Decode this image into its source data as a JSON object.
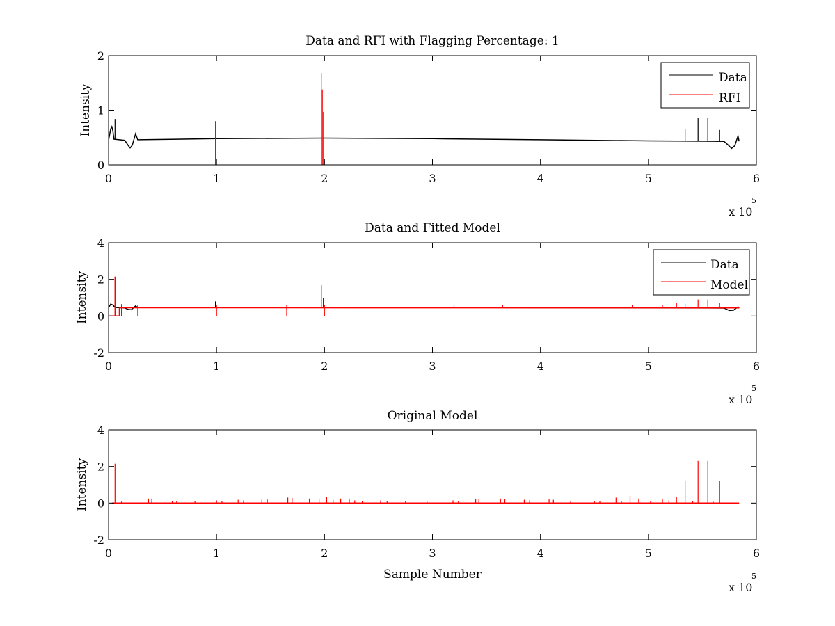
{
  "chart_data": [
    {
      "type": "line",
      "title": "Data and RFI with Flagging Percentage: 1",
      "xlabel": "",
      "ylabel": "Intensity",
      "xlim": [
        0,
        6
      ],
      "ylim": [
        0,
        2
      ],
      "xticks": [
        0,
        1,
        2,
        3,
        4,
        5,
        6
      ],
      "yticks": [
        0,
        1,
        2
      ],
      "x_multiplier": "x 10",
      "x_multiplier_exponent": "5",
      "legend": {
        "position": "top-right",
        "entries": [
          "Data",
          "RFI"
        ]
      },
      "grid": false,
      "series": [
        {
          "name": "Data",
          "color": "#000000",
          "baseline": [
            [
              0.0,
              0.45
            ],
            [
              0.02,
              0.66
            ],
            [
              0.03,
              0.7
            ],
            [
              0.04,
              0.62
            ],
            [
              0.05,
              0.47
            ],
            [
              0.1,
              0.46
            ],
            [
              0.15,
              0.45
            ],
            [
              0.18,
              0.36
            ],
            [
              0.2,
              0.31
            ],
            [
              0.22,
              0.36
            ],
            [
              0.25,
              0.57
            ],
            [
              0.27,
              0.46
            ],
            [
              1.0,
              0.48
            ],
            [
              2.0,
              0.49
            ],
            [
              3.0,
              0.48
            ],
            [
              4.0,
              0.46
            ],
            [
              5.0,
              0.44
            ],
            [
              5.7,
              0.43
            ],
            [
              5.74,
              0.36
            ],
            [
              5.77,
              0.3
            ],
            [
              5.8,
              0.35
            ],
            [
              5.83,
              0.53
            ],
            [
              5.84,
              0.43
            ]
          ],
          "spikes": [
            [
              0.06,
              0.84
            ],
            [
              5.34,
              0.66
            ],
            [
              5.46,
              0.86
            ],
            [
              5.55,
              0.86
            ],
            [
              5.66,
              0.64
            ]
          ]
        },
        {
          "name": "RFI",
          "color": "#ff0000",
          "spikes": [
            [
              0.99,
              0.8
            ],
            [
              1.97,
              1.68
            ],
            [
              1.98,
              1.38
            ],
            [
              1.99,
              0.97
            ]
          ]
        }
      ]
    },
    {
      "type": "line",
      "title": "Data and Fitted Model",
      "xlabel": "",
      "ylabel": "Intensity",
      "xlim": [
        0,
        6
      ],
      "ylim": [
        -2,
        4
      ],
      "xticks": [
        0,
        1,
        2,
        3,
        4,
        5,
        6
      ],
      "yticks": [
        -2,
        0,
        2,
        4
      ],
      "x_multiplier": "x 10",
      "x_multiplier_exponent": "5",
      "legend": {
        "position": "top-right",
        "entries": [
          "Data",
          "Model"
        ]
      },
      "grid": false,
      "series": [
        {
          "name": "Data",
          "color": "#000000",
          "baseline": [
            [
              0.0,
              0.45
            ],
            [
              0.02,
              0.65
            ],
            [
              0.04,
              0.6
            ],
            [
              0.06,
              0.47
            ],
            [
              0.15,
              0.44
            ],
            [
              0.18,
              0.36
            ],
            [
              0.21,
              0.34
            ],
            [
              0.25,
              0.55
            ],
            [
              0.27,
              0.46
            ],
            [
              1.0,
              0.47
            ],
            [
              2.0,
              0.48
            ],
            [
              3.0,
              0.47
            ],
            [
              4.0,
              0.45
            ],
            [
              5.0,
              0.44
            ],
            [
              5.7,
              0.43
            ],
            [
              5.75,
              0.3
            ],
            [
              5.79,
              0.32
            ],
            [
              5.83,
              0.5
            ],
            [
              5.84,
              0.42
            ]
          ],
          "spikes": [
            [
              0.99,
              0.8
            ],
            [
              1.97,
              1.68
            ],
            [
              1.99,
              0.97
            ]
          ]
        },
        {
          "name": "Model",
          "color": "#ff0000",
          "baseline": [
            [
              0.0,
              0.0
            ],
            [
              0.06,
              0.0
            ],
            [
              0.06,
              2.15
            ],
            [
              0.065,
              0.0
            ],
            [
              0.1,
              0.0
            ],
            [
              0.1,
              0.45
            ],
            [
              5.84,
              0.44
            ]
          ],
          "spikes": [
            [
              0.12,
              0.65
            ],
            [
              0.27,
              0.6
            ],
            [
              1.0,
              0.58
            ],
            [
              1.65,
              0.6
            ],
            [
              2.0,
              0.62
            ],
            [
              3.2,
              0.58
            ],
            [
              3.65,
              0.58
            ],
            [
              4.85,
              0.58
            ],
            [
              5.13,
              0.6
            ],
            [
              5.26,
              0.7
            ],
            [
              5.34,
              0.65
            ],
            [
              5.46,
              0.9
            ],
            [
              5.55,
              0.9
            ],
            [
              5.66,
              0.7
            ]
          ]
        }
      ]
    },
    {
      "type": "line",
      "title": "Original Model",
      "xlabel": "Sample Number",
      "ylabel": "Intensity",
      "xlim": [
        0,
        6
      ],
      "ylim": [
        -2,
        4
      ],
      "xticks": [
        0,
        1,
        2,
        3,
        4,
        5,
        6
      ],
      "yticks": [
        -2,
        0,
        2,
        4
      ],
      "x_multiplier": "x 10",
      "x_multiplier_exponent": "5",
      "grid": false,
      "series": [
        {
          "name": "Model",
          "color": "#ff0000",
          "baseline": [
            [
              0.03,
              0.0
            ],
            [
              5.84,
              0.0
            ]
          ],
          "spikes": [
            [
              0.06,
              2.15
            ],
            [
              0.12,
              0.08
            ],
            [
              0.37,
              0.25
            ],
            [
              0.4,
              0.25
            ],
            [
              0.59,
              0.12
            ],
            [
              0.63,
              0.1
            ],
            [
              0.8,
              0.1
            ],
            [
              1.0,
              0.15
            ],
            [
              1.05,
              0.1
            ],
            [
              1.2,
              0.18
            ],
            [
              1.25,
              0.15
            ],
            [
              1.42,
              0.2
            ],
            [
              1.47,
              0.2
            ],
            [
              1.66,
              0.3
            ],
            [
              1.7,
              0.28
            ],
            [
              1.86,
              0.25
            ],
            [
              1.95,
              0.2
            ],
            [
              2.02,
              0.35
            ],
            [
              2.08,
              0.18
            ],
            [
              2.15,
              0.25
            ],
            [
              2.23,
              0.2
            ],
            [
              2.28,
              0.15
            ],
            [
              2.35,
              0.1
            ],
            [
              2.52,
              0.15
            ],
            [
              2.58,
              0.1
            ],
            [
              2.75,
              0.12
            ],
            [
              2.95,
              0.1
            ],
            [
              3.19,
              0.15
            ],
            [
              3.24,
              0.1
            ],
            [
              3.4,
              0.22
            ],
            [
              3.43,
              0.2
            ],
            [
              3.63,
              0.25
            ],
            [
              3.67,
              0.22
            ],
            [
              3.85,
              0.18
            ],
            [
              3.9,
              0.15
            ],
            [
              4.08,
              0.2
            ],
            [
              4.12,
              0.18
            ],
            [
              4.28,
              0.1
            ],
            [
              4.5,
              0.12
            ],
            [
              4.55,
              0.1
            ],
            [
              4.7,
              0.3
            ],
            [
              4.75,
              0.12
            ],
            [
              4.83,
              0.4
            ],
            [
              4.91,
              0.25
            ],
            [
              5.02,
              0.1
            ],
            [
              5.13,
              0.2
            ],
            [
              5.19,
              0.15
            ],
            [
              5.26,
              0.35
            ],
            [
              5.34,
              1.22
            ],
            [
              5.41,
              0.12
            ],
            [
              5.46,
              2.3
            ],
            [
              5.55,
              2.3
            ],
            [
              5.6,
              0.12
            ],
            [
              5.66,
              1.22
            ]
          ]
        }
      ]
    }
  ]
}
